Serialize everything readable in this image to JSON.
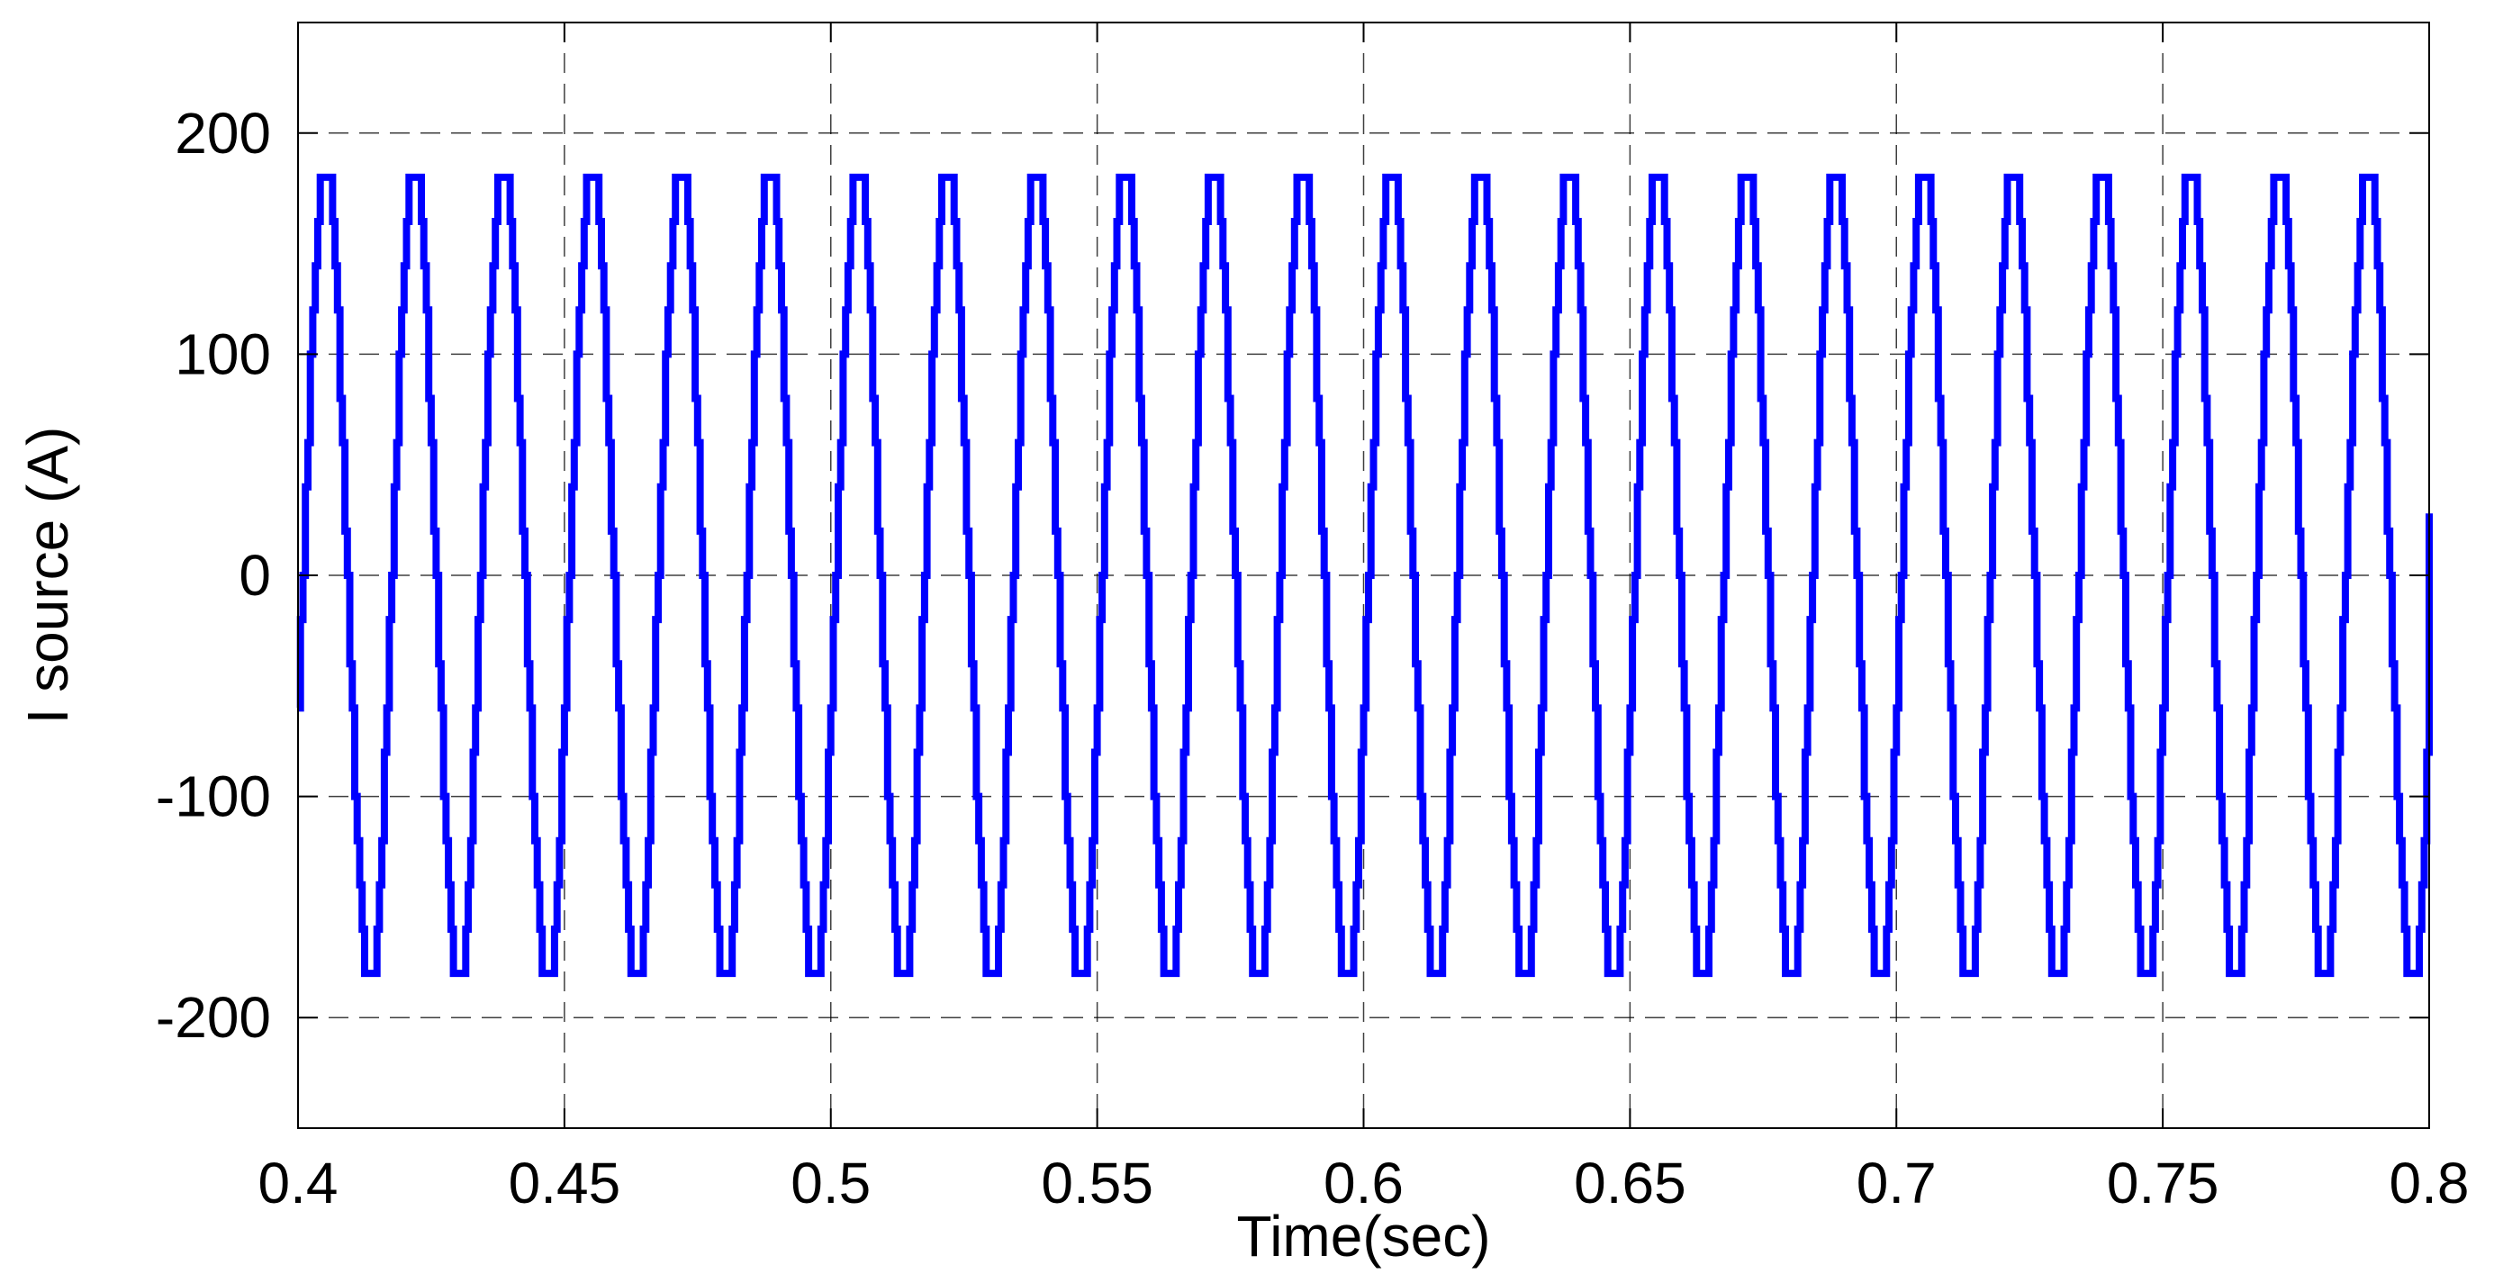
{
  "chart_data": {
    "type": "line",
    "title": "",
    "xlabel": "Time(sec)",
    "ylabel": "I source (A)",
    "xlim": [
      0.4,
      0.8
    ],
    "ylim": [
      -250,
      250
    ],
    "grid": true,
    "legend": "none",
    "x_ticks": [
      "0.4",
      "0.45",
      "0.5",
      "0.55",
      "0.6",
      "0.65",
      "0.7",
      "0.75",
      "0.8"
    ],
    "y_ticks": [
      "200",
      "100",
      "0",
      "-100",
      "-200"
    ],
    "series": [
      {
        "color": "#0000ff",
        "waveform": "stepped sinusoid",
        "amplitude": 185,
        "frequency_hz": 60,
        "t_start": 0.4,
        "t_end": 0.8,
        "start_value": -60,
        "end_value": 28
      }
    ]
  }
}
